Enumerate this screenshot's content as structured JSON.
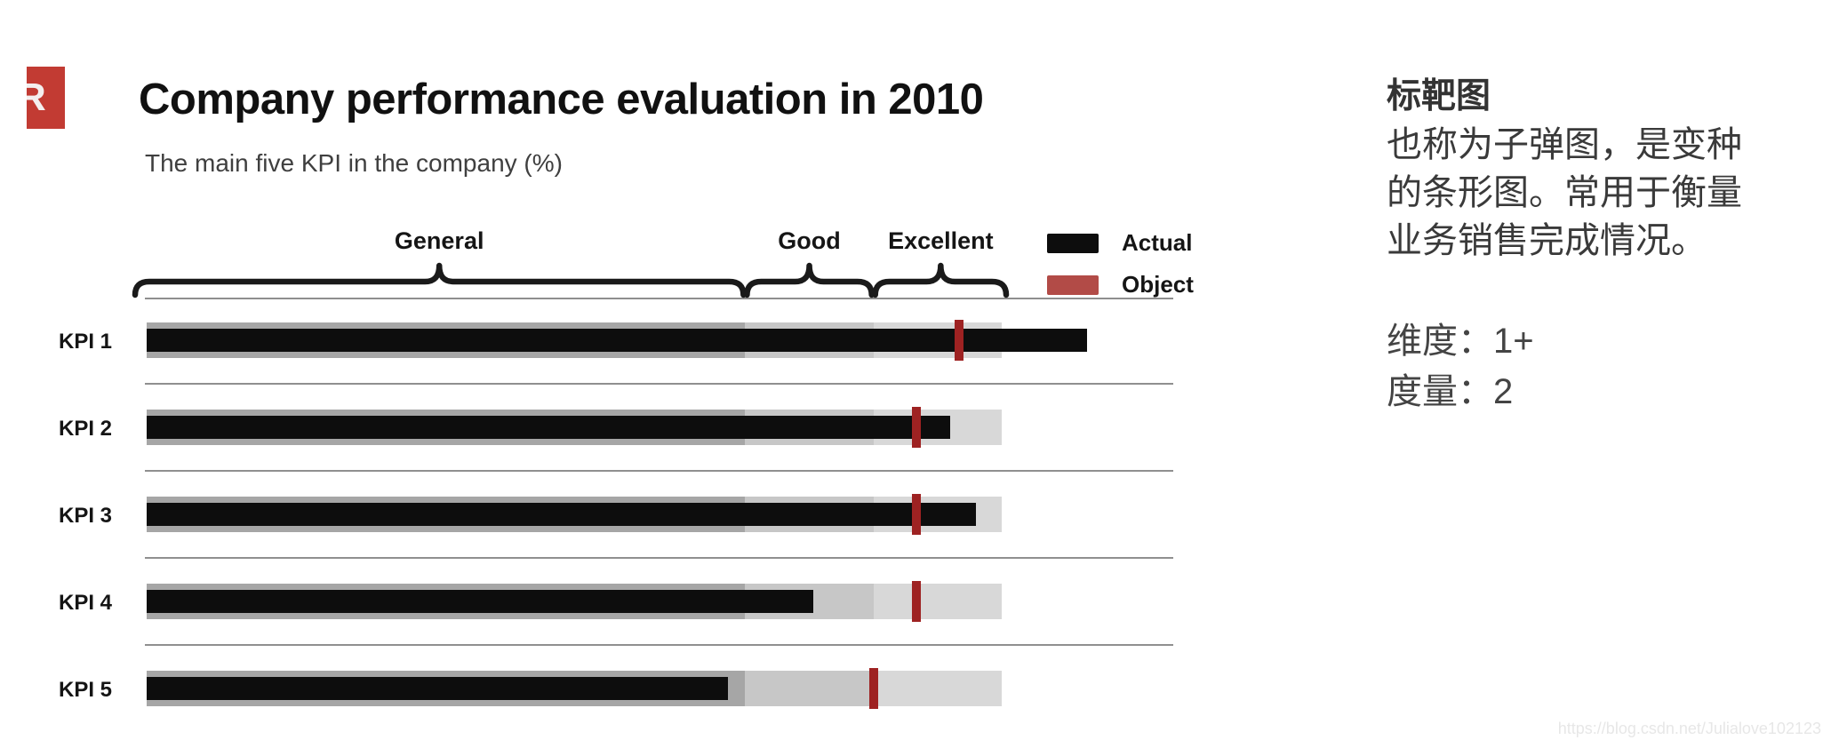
{
  "page": {
    "watermark": "https://blog.csdn.net/Julialove102123"
  },
  "logo": {
    "letter": "R",
    "color": "#c23b33"
  },
  "chart_data": {
    "type": "bullet",
    "title": "Company performance evaluation in 2010",
    "subtitle": "The main five KPI in the company (%)",
    "value_range": [
      0,
      100
    ],
    "zones": [
      {
        "label": "General",
        "start": 0,
        "end": 70,
        "color": "#a6a6a6"
      },
      {
        "label": "Good",
        "start": 70,
        "end": 85,
        "color": "#c7c7c7"
      },
      {
        "label": "Excellent",
        "start": 85,
        "end": 100,
        "color": "#d8d8d8"
      }
    ],
    "legend": [
      {
        "label": "Actual",
        "color": "#0d0d0d"
      },
      {
        "label": "Object",
        "color": "#b24b47"
      }
    ],
    "categories": [
      "KPI 1",
      "KPI 2",
      "KPI 3",
      "KPI 4",
      "KPI 5"
    ],
    "series": [
      {
        "name": "Actual",
        "values": [
          110,
          94,
          97,
          78,
          68
        ]
      },
      {
        "name": "Object",
        "values": [
          95,
          90,
          90,
          90,
          85
        ]
      }
    ],
    "bar_color": "#0d0d0d",
    "marker_color": "#9e2222",
    "grid": "row-separators",
    "legend_position": "top-right"
  },
  "side_panel": {
    "heading": "标靶图",
    "description_lines": [
      "也称为子弹图，是变种",
      "的条形图。常用于衡量",
      "业务销售完成情况。"
    ],
    "dimension_line": "维度：1+",
    "measure_line": "度量：2"
  }
}
